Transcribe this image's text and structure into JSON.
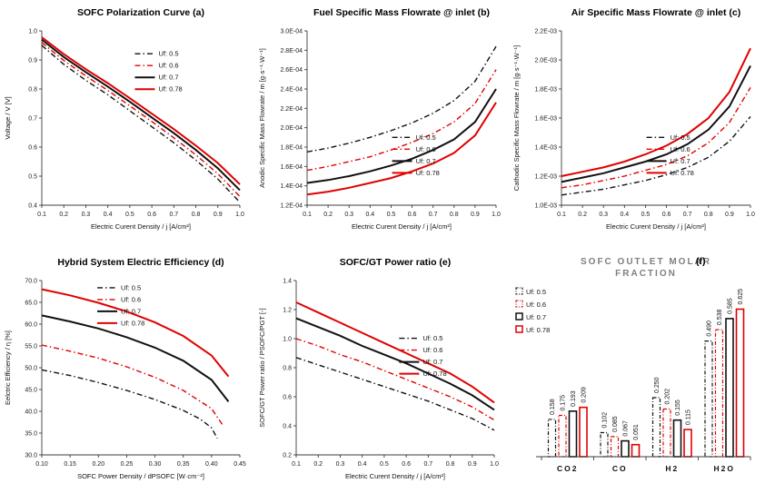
{
  "colors": {
    "black": "#111111",
    "red": "#e00000",
    "axis": "#3c3c3c",
    "bar_title_grey": "#7f7f7f"
  },
  "chart_data": [
    {
      "key": "a",
      "type": "line",
      "title": "SOFC Polarization Curve",
      "tag": "(a)",
      "xlabel": "Electric Curent Density / j [A/cm²]",
      "ylabel": "Voltage / V [V]",
      "xlim": [
        0.1,
        1.0
      ],
      "ylim": [
        0.4,
        1.0
      ],
      "xticks": [
        0.1,
        0.2,
        0.3,
        0.4,
        0.5,
        0.6,
        0.7,
        0.8,
        0.9,
        1.0
      ],
      "xtick_labels": [
        "0.1",
        "0.2",
        "0.3",
        "0.4",
        "0.5",
        "0.6",
        "0.7",
        "0.8",
        "0.9",
        "1.0"
      ],
      "yticks": [
        0.4,
        0.5,
        0.6,
        0.7,
        0.8,
        0.9,
        1.0
      ],
      "ytick_labels": [
        "0.4",
        "0.5",
        "0.6",
        "0.7",
        "0.8",
        "0.9",
        "1.0"
      ],
      "grid": false,
      "legend": {
        "px": 0.47,
        "py": 0.1
      },
      "series": [
        {
          "name": "Uf: 0.5",
          "color": "black",
          "style": "dashdot",
          "x": [
            0.1,
            0.2,
            0.3,
            0.4,
            0.5,
            0.6,
            0.7,
            0.8,
            0.9,
            1.0
          ],
          "y": [
            0.95,
            0.885,
            0.83,
            0.78,
            0.725,
            0.67,
            0.615,
            0.555,
            0.49,
            0.41
          ]
        },
        {
          "name": "Uf: 0.6",
          "color": "red",
          "style": "dashdot",
          "x": [
            0.1,
            0.2,
            0.3,
            0.4,
            0.5,
            0.6,
            0.7,
            0.8,
            0.9,
            1.0
          ],
          "y": [
            0.96,
            0.898,
            0.845,
            0.795,
            0.742,
            0.688,
            0.632,
            0.573,
            0.508,
            0.43
          ]
        },
        {
          "name": "Uf: 0.7",
          "color": "black",
          "style": "solid",
          "x": [
            0.1,
            0.2,
            0.3,
            0.4,
            0.5,
            0.6,
            0.7,
            0.8,
            0.9,
            1.0
          ],
          "y": [
            0.97,
            0.91,
            0.858,
            0.808,
            0.756,
            0.702,
            0.648,
            0.59,
            0.527,
            0.452
          ]
        },
        {
          "name": "Uf: 0.78",
          "color": "red",
          "style": "solid",
          "x": [
            0.1,
            0.2,
            0.3,
            0.4,
            0.5,
            0.6,
            0.7,
            0.8,
            0.9,
            1.0
          ],
          "y": [
            0.978,
            0.92,
            0.868,
            0.82,
            0.768,
            0.715,
            0.662,
            0.605,
            0.545,
            0.472
          ]
        }
      ]
    },
    {
      "key": "b",
      "type": "line",
      "title": "Fuel Specific Mass Flowrate @ inlet",
      "tag": "(b)",
      "xlabel": "Electric Curent Density / j [A/cm²]",
      "ylabel": "Anodic Specific Mass Flowrate / m [g·s⁻¹·W⁻¹]",
      "xlim": [
        0.1,
        1.0
      ],
      "ylim": [
        0.00012,
        0.0003
      ],
      "xticks": [
        0.1,
        0.2,
        0.3,
        0.4,
        0.5,
        0.6,
        0.7,
        0.8,
        0.9,
        1.0
      ],
      "xtick_labels": [
        "0.1",
        "0.2",
        "0.3",
        "0.4",
        "0.5",
        "0.6",
        "0.7",
        "0.8",
        "0.9",
        "1.0"
      ],
      "yticks": [
        0.00012,
        0.00014,
        0.00016,
        0.00018,
        0.0002,
        0.00022,
        0.00024,
        0.00026,
        0.00028,
        0.0003
      ],
      "ytick_labels": [
        "1.2E-04",
        "1.4E-04",
        "1.6E-04",
        "1.8E-04",
        "2.0E-04",
        "2.2E-04",
        "2.4E-04",
        "2.6E-04",
        "2.8E-04",
        "3.0E-04"
      ],
      "grid": false,
      "legend": {
        "px": 0.45,
        "py": 0.58
      },
      "series": [
        {
          "name": "Uf: 0.5",
          "color": "black",
          "style": "dashdot",
          "x": [
            0.1,
            0.2,
            0.3,
            0.4,
            0.5,
            0.6,
            0.7,
            0.8,
            0.9,
            1.0
          ],
          "y": [
            0.000175,
            0.000179,
            0.000184,
            0.00019,
            0.000197,
            0.000205,
            0.000215,
            0.000228,
            0.000248,
            0.000284
          ]
        },
        {
          "name": "Uf: 0.6",
          "color": "red",
          "style": "dashdot",
          "x": [
            0.1,
            0.2,
            0.3,
            0.4,
            0.5,
            0.6,
            0.7,
            0.8,
            0.9,
            1.0
          ],
          "y": [
            0.000156,
            0.00016,
            0.000165,
            0.00017,
            0.000177,
            0.000185,
            0.000194,
            0.000206,
            0.000225,
            0.00026
          ]
        },
        {
          "name": "Uf: 0.7",
          "color": "black",
          "style": "solid",
          "x": [
            0.1,
            0.2,
            0.3,
            0.4,
            0.5,
            0.6,
            0.7,
            0.8,
            0.9,
            1.0
          ],
          "y": [
            0.000143,
            0.000146,
            0.00015,
            0.000155,
            0.000161,
            0.000168,
            0.000177,
            0.000188,
            0.000206,
            0.00024
          ]
        },
        {
          "name": "Uf: 0.78",
          "color": "red",
          "style": "solid",
          "x": [
            0.1,
            0.2,
            0.3,
            0.4,
            0.5,
            0.6,
            0.7,
            0.8,
            0.9,
            1.0
          ],
          "y": [
            0.000131,
            0.000134,
            0.000138,
            0.000143,
            0.000148,
            0.000155,
            0.000163,
            0.000174,
            0.000192,
            0.000226
          ]
        }
      ]
    },
    {
      "key": "c",
      "type": "line",
      "title": "Air Specific Mass Flowrate @ inlet",
      "tag": "(c)",
      "xlabel": "Electric Curent Density / j [A/cm²]",
      "ylabel": "Cathodic Specific Mass Flowrate / m [g·s⁻¹·W⁻¹]",
      "xlim": [
        0.1,
        1.0
      ],
      "ylim": [
        0.001,
        0.0022
      ],
      "xticks": [
        0.1,
        0.2,
        0.3,
        0.4,
        0.5,
        0.6,
        0.7,
        0.8,
        0.9,
        1.0
      ],
      "xtick_labels": [
        "0.1",
        "0.2",
        "0.3",
        "0.4",
        "0.5",
        "0.6",
        "0.7",
        "0.8",
        "0.9",
        "1.0"
      ],
      "yticks": [
        0.001,
        0.0012,
        0.0014,
        0.0016,
        0.0018,
        0.002,
        0.0022
      ],
      "ytick_labels": [
        "1.0E-03",
        "1.2E-03",
        "1.4E-03",
        "1.6E-03",
        "1.8E-03",
        "2.0E-03",
        "2.2E-03"
      ],
      "grid": false,
      "legend": {
        "px": 0.45,
        "py": 0.58
      },
      "series": [
        {
          "name": "Uf: 0.5",
          "color": "black",
          "style": "dashdot",
          "x": [
            0.1,
            0.2,
            0.3,
            0.4,
            0.5,
            0.6,
            0.7,
            0.8,
            0.9,
            1.0
          ],
          "y": [
            0.00107,
            0.00109,
            0.00111,
            0.00114,
            0.00117,
            0.00121,
            0.00126,
            0.00133,
            0.00144,
            0.00161
          ]
        },
        {
          "name": "Uf: 0.6",
          "color": "red",
          "style": "dashdot",
          "x": [
            0.1,
            0.2,
            0.3,
            0.4,
            0.5,
            0.6,
            0.7,
            0.8,
            0.9,
            1.0
          ],
          "y": [
            0.00112,
            0.00114,
            0.00117,
            0.0012,
            0.00124,
            0.00128,
            0.00134,
            0.00143,
            0.00157,
            0.00181
          ]
        },
        {
          "name": "Uf: 0.7",
          "color": "black",
          "style": "solid",
          "x": [
            0.1,
            0.2,
            0.3,
            0.4,
            0.5,
            0.6,
            0.7,
            0.8,
            0.9,
            1.0
          ],
          "y": [
            0.00116,
            0.00119,
            0.00122,
            0.00126,
            0.0013,
            0.00135,
            0.00142,
            0.00152,
            0.00168,
            0.00196
          ]
        },
        {
          "name": "Uf: 0.78",
          "color": "red",
          "style": "solid",
          "x": [
            0.1,
            0.2,
            0.3,
            0.4,
            0.5,
            0.6,
            0.7,
            0.8,
            0.9,
            1.0
          ],
          "y": [
            0.0012,
            0.00123,
            0.00126,
            0.0013,
            0.00135,
            0.00141,
            0.00149,
            0.0016,
            0.00178,
            0.00208
          ]
        }
      ]
    },
    {
      "key": "d",
      "type": "line",
      "title": "Hybrid System Electric Efficiency",
      "tag": "(d)",
      "xlabel": "SOFC Power Density / dPSOFC [W·cm⁻²]",
      "ylabel": "Eelctric Efficiency / η [%]",
      "xlim": [
        0.1,
        0.45
      ],
      "ylim": [
        30.0,
        70.0
      ],
      "xticks": [
        0.1,
        0.15,
        0.2,
        0.25,
        0.3,
        0.35,
        0.4,
        0.45
      ],
      "xtick_labels": [
        "0.10",
        "0.15",
        "0.20",
        "0.25",
        "0.30",
        "0.35",
        "0.40",
        "0.45"
      ],
      "yticks": [
        30,
        35,
        40,
        45,
        50,
        55,
        60,
        65,
        70
      ],
      "ytick_labels": [
        "30.0",
        "35.0",
        "40.0",
        "45.0",
        "50.0",
        "55.0",
        "60.0",
        "65.0",
        "70.0"
      ],
      "grid": false,
      "legend": {
        "px": 0.28,
        "py": 0.01
      },
      "series": [
        {
          "name": "Uf: 0.5",
          "color": "black",
          "style": "dashdot",
          "x": [
            0.1,
            0.15,
            0.2,
            0.25,
            0.3,
            0.35,
            0.38,
            0.4,
            0.41
          ],
          "y": [
            49.5,
            48.2,
            46.6,
            44.8,
            42.7,
            40.2,
            38.2,
            36.2,
            33.8
          ]
        },
        {
          "name": "Uf: 0.6",
          "color": "red",
          "style": "dashdot",
          "x": [
            0.1,
            0.15,
            0.2,
            0.25,
            0.3,
            0.35,
            0.4,
            0.42
          ],
          "y": [
            55.2,
            53.8,
            52.2,
            50.2,
            47.8,
            44.8,
            40.6,
            36.8
          ]
        },
        {
          "name": "Uf: 0.7",
          "color": "black",
          "style": "solid",
          "x": [
            0.1,
            0.15,
            0.2,
            0.25,
            0.3,
            0.35,
            0.4,
            0.43
          ],
          "y": [
            62.0,
            60.6,
            59.0,
            57.0,
            54.6,
            51.6,
            47.2,
            42.2
          ]
        },
        {
          "name": "Uf: 0.78",
          "color": "red",
          "style": "solid",
          "x": [
            0.1,
            0.15,
            0.2,
            0.25,
            0.3,
            0.35,
            0.4,
            0.43
          ],
          "y": [
            68.0,
            66.6,
            64.9,
            62.9,
            60.4,
            57.3,
            52.8,
            48.0
          ]
        }
      ]
    },
    {
      "key": "e",
      "type": "line",
      "title": "SOFC/GT Power ratio",
      "tag": "(e)",
      "xlabel": "Electric Curent Density / j [A/cm²]",
      "ylabel": "SOFC/GT Power ratio / PSOFC/PGT [-]",
      "xlim": [
        0.1,
        1.0
      ],
      "ylim": [
        0.2,
        1.4
      ],
      "xticks": [
        0.1,
        0.2,
        0.3,
        0.4,
        0.5,
        0.6,
        0.7,
        0.8,
        0.9,
        1.0
      ],
      "xtick_labels": [
        "0.1",
        "0.2",
        "0.3",
        "0.4",
        "0.5",
        "0.6",
        "0.7",
        "0.8",
        "0.9",
        "1.0"
      ],
      "yticks": [
        0.2,
        0.4,
        0.6,
        0.8,
        1.0,
        1.2,
        1.4
      ],
      "ytick_labels": [
        "0.2",
        "0.4",
        "0.6",
        "0.8",
        "1.0",
        "1.2",
        "1.4"
      ],
      "grid": false,
      "legend": {
        "px": 0.52,
        "py": 0.3
      },
      "series": [
        {
          "name": "Uf: 0.5",
          "color": "black",
          "style": "dashdot",
          "x": [
            0.1,
            0.2,
            0.3,
            0.4,
            0.5,
            0.6,
            0.7,
            0.8,
            0.9,
            1.0
          ],
          "y": [
            0.87,
            0.82,
            0.77,
            0.72,
            0.67,
            0.62,
            0.57,
            0.51,
            0.45,
            0.37
          ]
        },
        {
          "name": "Uf: 0.6",
          "color": "red",
          "style": "dashdot",
          "x": [
            0.1,
            0.2,
            0.3,
            0.4,
            0.5,
            0.6,
            0.7,
            0.8,
            0.9,
            1.0
          ],
          "y": [
            1.0,
            0.95,
            0.89,
            0.84,
            0.78,
            0.72,
            0.66,
            0.6,
            0.53,
            0.44
          ]
        },
        {
          "name": "Uf: 0.7",
          "color": "black",
          "style": "solid",
          "x": [
            0.1,
            0.2,
            0.3,
            0.4,
            0.5,
            0.6,
            0.7,
            0.8,
            0.9,
            1.0
          ],
          "y": [
            1.14,
            1.08,
            1.02,
            0.95,
            0.89,
            0.83,
            0.76,
            0.69,
            0.61,
            0.51
          ]
        },
        {
          "name": "Uf: 0.78",
          "color": "red",
          "style": "solid",
          "x": [
            0.1,
            0.2,
            0.3,
            0.4,
            0.5,
            0.6,
            0.7,
            0.8,
            0.9,
            1.0
          ],
          "y": [
            1.25,
            1.18,
            1.11,
            1.04,
            0.97,
            0.9,
            0.83,
            0.76,
            0.67,
            0.56
          ]
        }
      ]
    },
    {
      "key": "f",
      "type": "bar",
      "title_lines": [
        "SOFC OUTLET MOLAR",
        "FRACTION"
      ],
      "tag": "(f)",
      "categories": [
        "CO2",
        "CO",
        "H2",
        "H2O"
      ],
      "ylim": [
        0,
        0.65
      ],
      "grid": false,
      "legend_position": "top-left",
      "value_label_format": "0.000",
      "series": [
        {
          "name": "Uf: 0.5",
          "color": "black",
          "style": "dashdot",
          "values": [
            0.158,
            0.102,
            0.25,
            0.49
          ]
        },
        {
          "name": "Uf: 0.6",
          "color": "red",
          "style": "dashdot",
          "values": [
            0.175,
            0.085,
            0.202,
            0.538
          ]
        },
        {
          "name": "Uf: 0.7",
          "color": "black",
          "style": "solid",
          "values": [
            0.193,
            0.067,
            0.155,
            0.585
          ]
        },
        {
          "name": "Uf: 0.78",
          "color": "red",
          "style": "solid",
          "values": [
            0.209,
            0.051,
            0.115,
            0.625
          ]
        }
      ]
    }
  ]
}
